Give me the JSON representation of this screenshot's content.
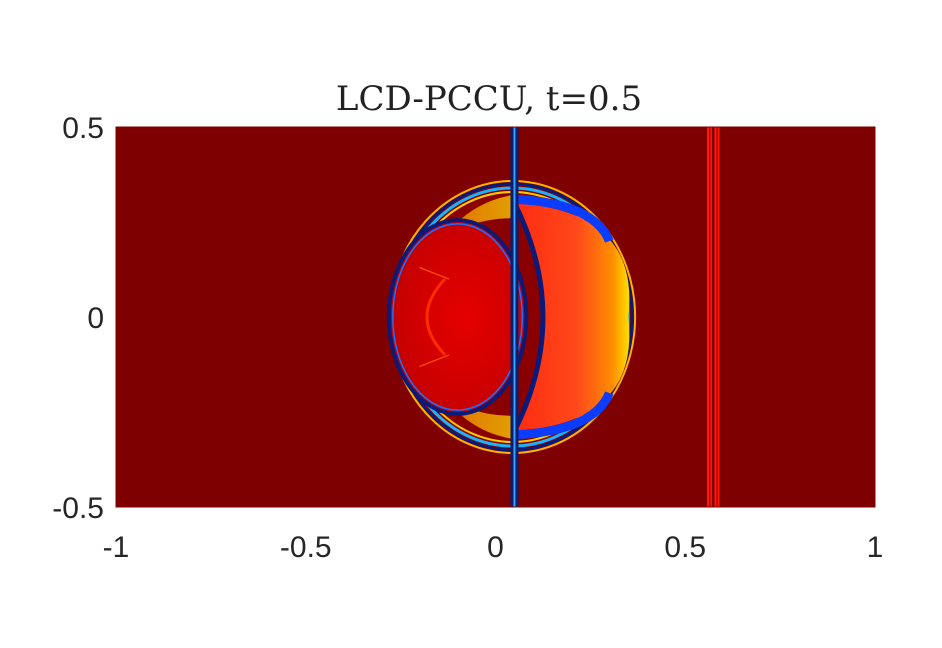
{
  "chart_data": {
    "type": "heatmap",
    "title": "LCD-PCCU, t=0.5",
    "xlabel": "",
    "ylabel": "",
    "xlim": [
      -1,
      1
    ],
    "ylim": [
      -0.5,
      0.5
    ],
    "x_ticks": [
      -1,
      -0.5,
      0,
      0.5,
      1
    ],
    "x_tick_labels": [
      "-1",
      "-0.5",
      "0",
      "0.5",
      "1"
    ],
    "y_ticks": [
      -0.5,
      0,
      0.5
    ],
    "y_tick_labels": [
      "-0.5",
      "0",
      "0.5"
    ],
    "colormap": "jet",
    "background_color": "#7f0000",
    "features": {
      "bubble_center_x": 0.04,
      "outer_left_x": -0.27,
      "outer_right_x": 0.36,
      "outer_half_height": 0.35,
      "incident_shock_x": 0.05,
      "transmitted_lines_x": [
        0.565,
        0.585
      ]
    }
  }
}
